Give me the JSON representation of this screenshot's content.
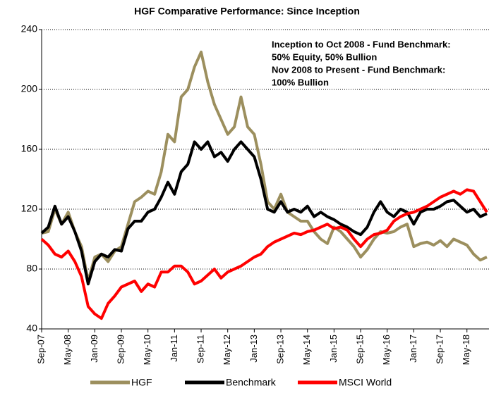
{
  "chart_data": {
    "type": "line",
    "title": "HGF Comparative Performance: Since Inception",
    "annotation": [
      "Inception to Oct 2008 - Fund Benchmark:",
      "50% Equity, 50% Bullion",
      "Nov 2008 to Present - Fund Benchmark:",
      "100% Bullion"
    ],
    "categories": [
      "Sep-07",
      null,
      null,
      null,
      "May-08",
      null,
      null,
      null,
      "Jan-09",
      null,
      null,
      null,
      "Sep-09",
      null,
      null,
      null,
      "May-10",
      null,
      null,
      null,
      "Jan-11",
      null,
      null,
      null,
      "Sep-11",
      null,
      null,
      null,
      "May-12",
      null,
      null,
      null,
      "Jan-13",
      null,
      null,
      null,
      "Sep-13",
      null,
      null,
      null,
      "May-14",
      null,
      null,
      null,
      "Jan-15",
      null,
      null,
      null,
      "Sep-15",
      null,
      null,
      null,
      "May-16",
      null,
      null,
      null,
      "Jan-17",
      null,
      null,
      null,
      "Sep-17",
      null,
      null,
      null,
      "May-18",
      null,
      null,
      null
    ],
    "series": [
      {
        "name": "HGF",
        "color": "#9c8f5e",
        "values": [
          104,
          105,
          120,
          110,
          118,
          105,
          95,
          72,
          88,
          90,
          85,
          92,
          95,
          110,
          125,
          128,
          132,
          130,
          145,
          170,
          165,
          195,
          200,
          215,
          225,
          205,
          190,
          180,
          170,
          175,
          195,
          175,
          170,
          150,
          125,
          120,
          130,
          118,
          115,
          112,
          112,
          105,
          100,
          97,
          108,
          105,
          100,
          95,
          88,
          93,
          100,
          105,
          104,
          105,
          108,
          110,
          95,
          97,
          98,
          96,
          99,
          95,
          100,
          98,
          96,
          90,
          86,
          88
        ]
      },
      {
        "name": "Benchmark",
        "color": "#000000",
        "values": [
          104,
          108,
          122,
          110,
          115,
          105,
          92,
          70,
          85,
          90,
          88,
          93,
          92,
          107,
          112,
          112,
          118,
          120,
          128,
          138,
          130,
          145,
          150,
          165,
          160,
          165,
          155,
          158,
          152,
          160,
          165,
          160,
          155,
          140,
          120,
          118,
          125,
          118,
          120,
          118,
          122,
          115,
          118,
          115,
          113,
          110,
          108,
          105,
          103,
          108,
          118,
          125,
          118,
          115,
          120,
          118,
          110,
          118,
          120,
          120,
          122,
          125,
          126,
          122,
          118,
          120,
          115,
          117
        ]
      },
      {
        "name": "MSCI World",
        "color": "#ff0000",
        "values": [
          100,
          96,
          90,
          88,
          92,
          85,
          75,
          55,
          50,
          47,
          57,
          62,
          68,
          70,
          72,
          65,
          70,
          68,
          78,
          78,
          82,
          82,
          78,
          70,
          72,
          76,
          80,
          74,
          78,
          80,
          82,
          85,
          88,
          90,
          95,
          98,
          100,
          102,
          104,
          103,
          105,
          106,
          108,
          110,
          107,
          108,
          106,
          100,
          95,
          100,
          103,
          104,
          106,
          112,
          115,
          117,
          118,
          120,
          122,
          125,
          128,
          130,
          132,
          130,
          133,
          132,
          125,
          118
        ]
      }
    ],
    "ylim": [
      40,
      240
    ],
    "yticks": [
      40,
      80,
      120,
      160,
      200,
      240
    ],
    "grid": true
  }
}
